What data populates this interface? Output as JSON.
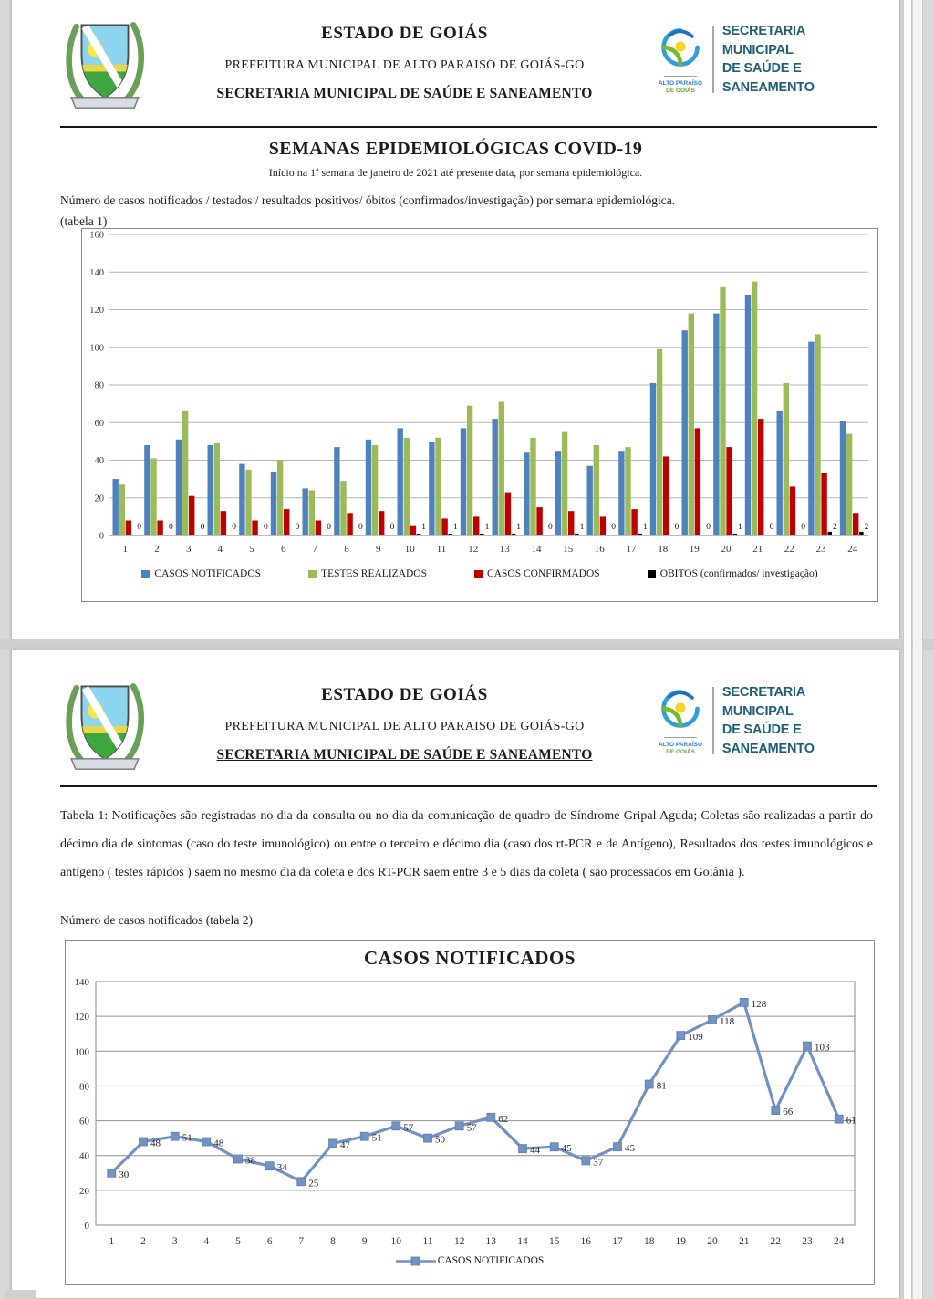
{
  "header": {
    "state": "ESTADO DE GOIÁS",
    "municipality": "PREFEITURA MUNICIPAL DE ALTO PARAISO DE GOIÁS-GO",
    "department": "SECRETARIA MUNICIPAL DE SAÚDE E SANEAMENTO",
    "emblem": {
      "caption_line1": "ALTO PARAÍSO",
      "caption_line2": "DE GOIÁS"
    },
    "right_logo": {
      "line1": "SECRETARIA MUNICIPAL",
      "line2": "DE SAÚDE E",
      "line3": "SANEAMENTO",
      "color": "#1d5f78"
    }
  },
  "page1": {
    "title": "SEMANAS EPIDEMIOLÓGICAS COVID-19",
    "subtitle": "Início na 1ª semana de janeiro de 2021 até presente data, por semana epidemiológica.",
    "intro_line1": "Número de casos notificados / testados / resultados positivos/ óbitos (confirmados/investigação) por semana epidemiológica.",
    "intro_line2": "(tabela 1)"
  },
  "page2": {
    "tabela1_note": "Tabela 1: Notificações são registradas no dia da consulta ou no dia da comunicação de quadro de Síndrome Gripal Aguda; Coletas são realizadas a partir do décimo dia de sintomas (caso do teste imunológico) ou entre o terceiro e décimo dia (caso dos rt-PCR e de Antígeno), Resultados dos testes imunológicos e antígeno ( testes rápidos ) saem no mesmo dia da coleta e dos RT-PCR saem entre 3 e 5 dias da coleta ( são processados em Goiânia ).",
    "tabela2_caption": "Número de casos notificados (tabela 2)"
  },
  "chart_data": [
    {
      "type": "bar",
      "categories": [
        1,
        2,
        3,
        4,
        5,
        6,
        7,
        8,
        9,
        10,
        11,
        12,
        13,
        14,
        15,
        16,
        17,
        18,
        19,
        20,
        21,
        22,
        23,
        24
      ],
      "series": [
        {
          "name": "CASOS NOTIFICADOS",
          "color": "#4f81bd",
          "values": [
            30,
            48,
            51,
            48,
            38,
            34,
            25,
            47,
            51,
            57,
            50,
            57,
            62,
            44,
            45,
            37,
            45,
            81,
            109,
            118,
            128,
            66,
            103,
            61
          ]
        },
        {
          "name": "TESTES REALIZADOS",
          "color": "#9bbb59",
          "values": [
            27,
            41,
            66,
            49,
            35,
            40,
            24,
            29,
            48,
            52,
            52,
            69,
            71,
            52,
            55,
            48,
            47,
            99,
            118,
            132,
            135,
            81,
            107,
            54
          ]
        },
        {
          "name": "CASOS CONFIRMADOS",
          "color": "#c00000",
          "values": [
            8,
            8,
            21,
            13,
            8,
            14,
            8,
            12,
            13,
            5,
            9,
            10,
            23,
            15,
            13,
            10,
            14,
            42,
            57,
            47,
            62,
            26,
            33,
            12
          ]
        },
        {
          "name": "OBITOS (confirmados/ investigação)",
          "color": "#000000",
          "values": [
            0,
            0,
            0,
            0,
            0,
            0,
            0,
            0,
            0,
            1,
            1,
            1,
            1,
            0,
            1,
            0,
            1,
            0,
            0,
            1,
            0,
            0,
            2,
            2
          ],
          "data_labels": true
        }
      ],
      "xlabel": "",
      "ylabel": "",
      "ylim": [
        0,
        160
      ],
      "ytick_step": 20,
      "grid": true,
      "legend_position": "bottom"
    },
    {
      "type": "line",
      "title": "CASOS NOTIFICADOS",
      "categories": [
        1,
        2,
        3,
        4,
        5,
        6,
        7,
        8,
        9,
        10,
        11,
        12,
        13,
        14,
        15,
        16,
        17,
        18,
        19,
        20,
        21,
        22,
        23,
        24
      ],
      "series": [
        {
          "name": "CASOS NOTIFICADOS",
          "color": "#7292c2",
          "marker": "square",
          "data_labels": true,
          "values": [
            30,
            48,
            51,
            48,
            38,
            34,
            25,
            47,
            51,
            57,
            50,
            57,
            62,
            44,
            45,
            37,
            45,
            81,
            109,
            118,
            128,
            66,
            103,
            61
          ]
        }
      ],
      "xlabel": "",
      "ylabel": "",
      "ylim": [
        0,
        140
      ],
      "ytick_step": 20,
      "grid": true,
      "legend_position": "bottom"
    }
  ]
}
